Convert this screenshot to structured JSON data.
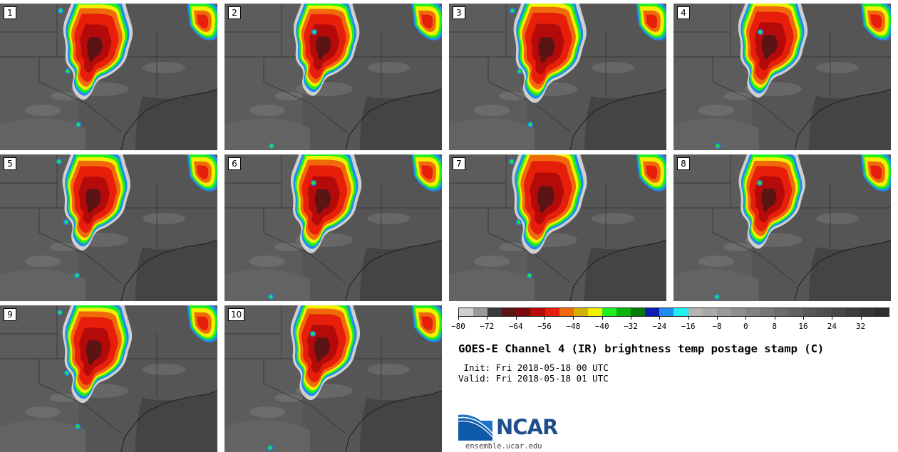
{
  "panels": [
    {
      "label": "1"
    },
    {
      "label": "2"
    },
    {
      "label": "3"
    },
    {
      "label": "4"
    },
    {
      "label": "5"
    },
    {
      "label": "6"
    },
    {
      "label": "7"
    },
    {
      "label": "8"
    },
    {
      "label": "9"
    },
    {
      "label": "10"
    }
  ],
  "colorbar": {
    "colors": [
      "#cfcfcf",
      "#9a9a9a",
      "#3a3a3a",
      "#5a1414",
      "#7a0a0a",
      "#b40a0a",
      "#e61e0a",
      "#f06a0a",
      "#d2b400",
      "#f0f000",
      "#1ef01e",
      "#0ab40a",
      "#087a08",
      "#0a1eb4",
      "#1e8cf0",
      "#1ef0f0",
      "#b4b4b4",
      "#a8a8a8",
      "#9a9a9a",
      "#8e8e8e",
      "#828282",
      "#777777",
      "#6c6c6c",
      "#626262",
      "#585858",
      "#4f4f4f",
      "#464646",
      "#3e3e3e",
      "#363636",
      "#2e2e2e"
    ],
    "ticks": [
      "−80",
      "−72",
      "−64",
      "−56",
      "−48",
      "−40",
      "−32",
      "−24",
      "−16",
      "−8",
      "0",
      "8",
      "16",
      "24",
      "32"
    ]
  },
  "title": "GOES-E Channel 4 (IR) brightness temp postage stamp (C)",
  "init": " Init: Fri 2018-05-18 00 UTC",
  "valid": "Valid: Fri 2018-05-18 01 UTC",
  "logo": {
    "text": "NCAR",
    "url": "ensemble.ucar.edu"
  }
}
